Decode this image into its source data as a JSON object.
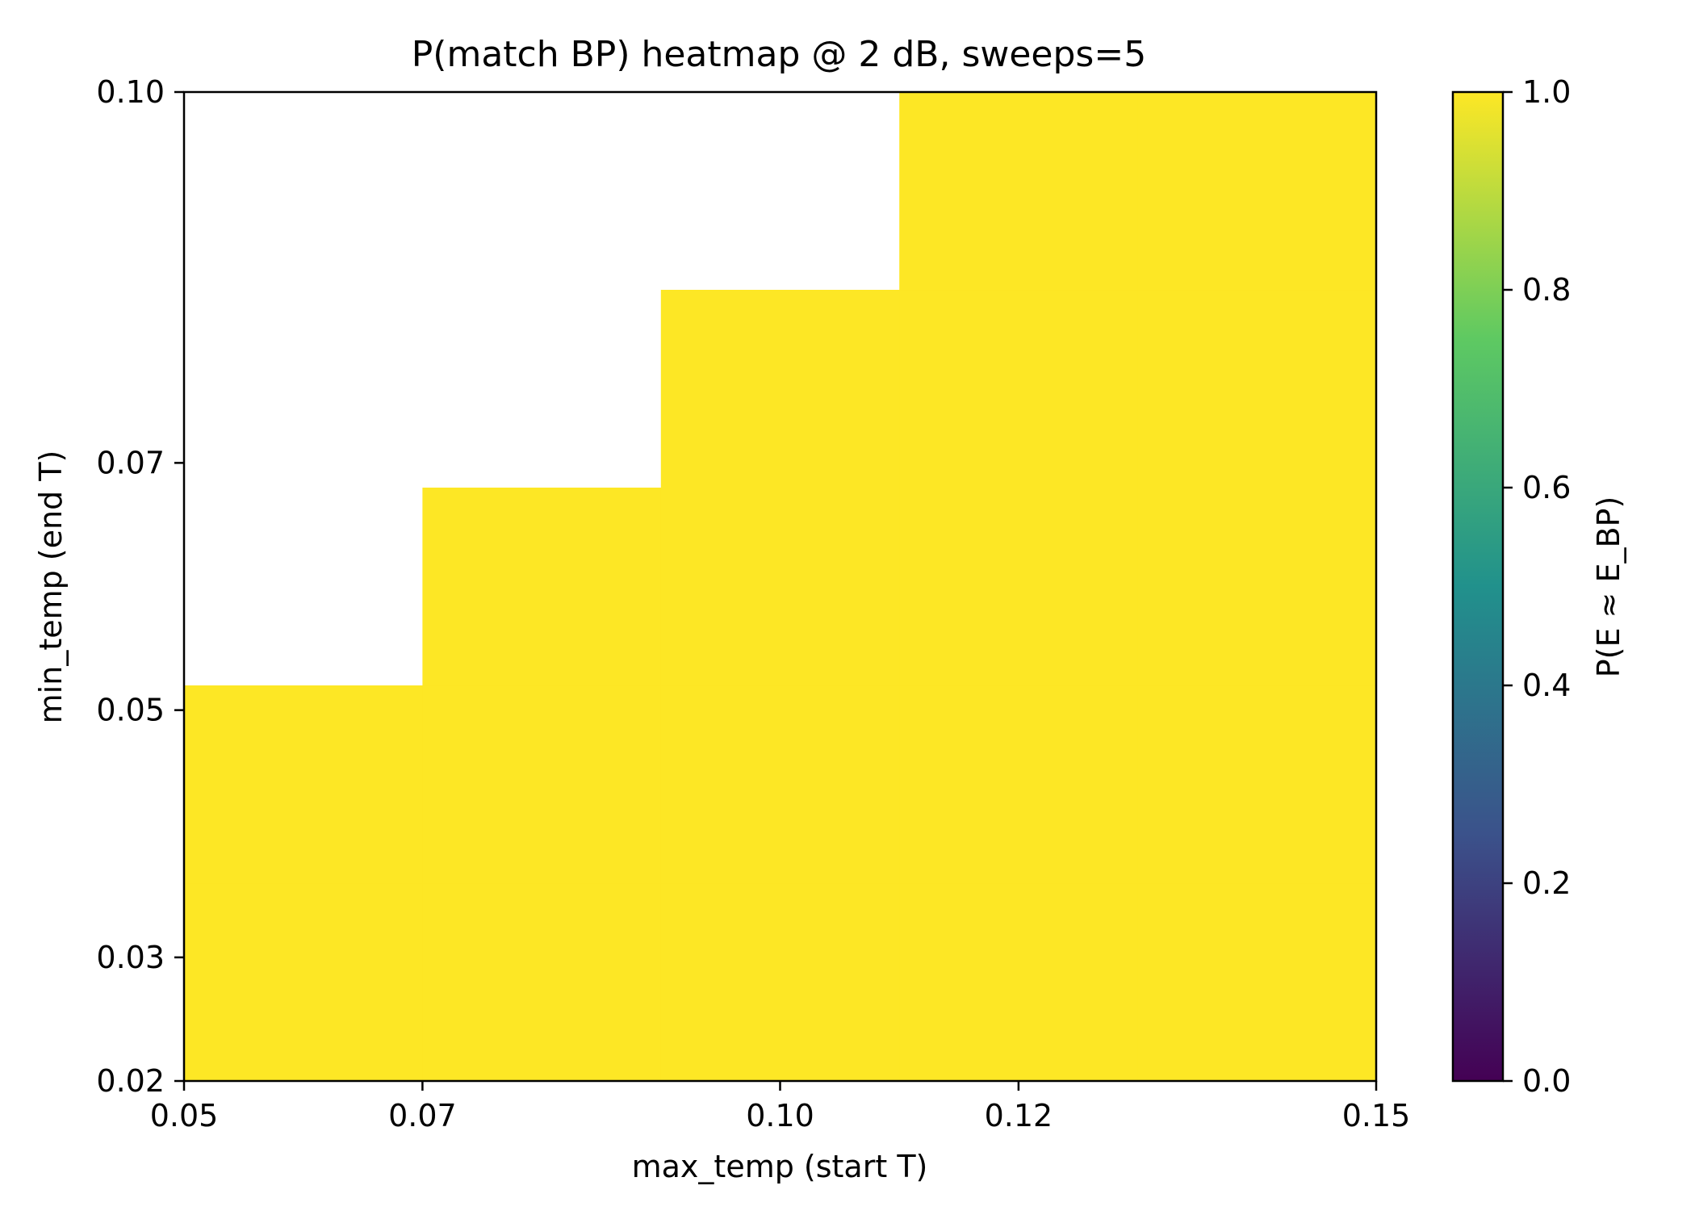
{
  "chart_data": {
    "type": "heatmap",
    "title": "P(match BP) heatmap @ 2 dB, sweeps=5",
    "xlabel": "max_temp (start T)",
    "ylabel": "min_temp (end T)",
    "x_edges": [
      0.05,
      0.07,
      0.09,
      0.11,
      0.13,
      0.15
    ],
    "y_edges": [
      0.02,
      0.036,
      0.052,
      0.068,
      0.084,
      0.1
    ],
    "xlim": [
      0.05,
      0.15
    ],
    "ylim": [
      0.02,
      0.1
    ],
    "x_ticks": [
      {
        "value": 0.05,
        "label": "0.05"
      },
      {
        "value": 0.07,
        "label": "0.07"
      },
      {
        "value": 0.1,
        "label": "0.10"
      },
      {
        "value": 0.12,
        "label": "0.12"
      },
      {
        "value": 0.15,
        "label": "0.15"
      }
    ],
    "y_ticks": [
      {
        "value": 0.02,
        "label": "0.02"
      },
      {
        "value": 0.03,
        "label": "0.03"
      },
      {
        "value": 0.05,
        "label": "0.05"
      },
      {
        "value": 0.07,
        "label": "0.07"
      },
      {
        "value": 0.1,
        "label": "0.10"
      }
    ],
    "values": [
      [
        1,
        1,
        1,
        1,
        1
      ],
      [
        1,
        1,
        1,
        1,
        1
      ],
      [
        null,
        1,
        1,
        1,
        1
      ],
      [
        null,
        null,
        1,
        1,
        1
      ],
      [
        null,
        null,
        null,
        1,
        1
      ]
    ],
    "colorbar": {
      "label": "P(E ≈ E_BP)",
      "range": [
        0.0,
        1.0
      ],
      "ticks": [
        {
          "value": 0.0,
          "label": "0.0"
        },
        {
          "value": 0.2,
          "label": "0.2"
        },
        {
          "value": 0.4,
          "label": "0.4"
        },
        {
          "value": 0.6,
          "label": "0.6"
        },
        {
          "value": 0.8,
          "label": "0.8"
        },
        {
          "value": 1.0,
          "label": "1.0"
        }
      ],
      "colormap": "viridis",
      "stops": [
        "#440154",
        "#3b528b",
        "#21918c",
        "#5ec962",
        "#fde725"
      ]
    },
    "grid": false
  }
}
